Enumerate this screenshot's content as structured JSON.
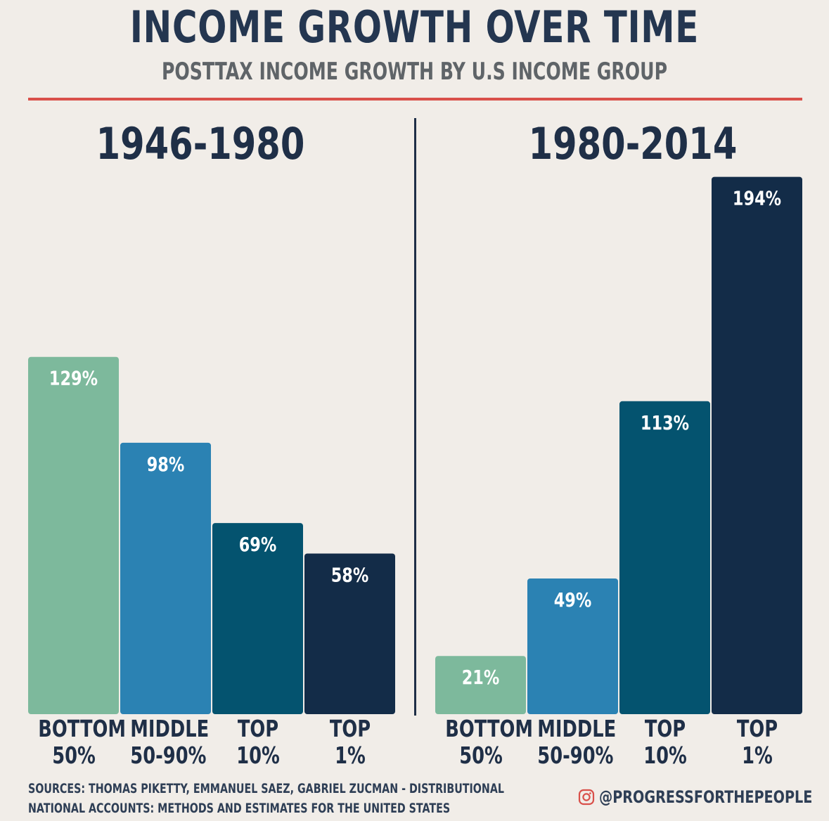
{
  "title": "INCOME GROWTH OVER TIME",
  "subtitle": "POSTTAX INCOME GROWTH BY U.S INCOME GROUP",
  "colors": {
    "accent_rule": "#d9504a",
    "bottom_50": "#7db99c",
    "middle_50_90": "#2b82b3",
    "top_10": "#04536f",
    "top_1": "#132c48",
    "text": "#1f2f47"
  },
  "chart_data": [
    {
      "type": "bar",
      "title": "1946-1980",
      "categories": [
        [
          "BOTTOM",
          "50%"
        ],
        [
          "MIDDLE",
          "50-90%"
        ],
        [
          "TOP",
          "10%"
        ],
        [
          "TOP",
          "1%"
        ]
      ],
      "values": [
        129,
        98,
        69,
        58
      ],
      "labels": [
        "129%",
        "98%",
        "69%",
        "58%"
      ],
      "ylim": [
        0,
        200
      ],
      "grid": false
    },
    {
      "type": "bar",
      "title": "1980-2014",
      "categories": [
        [
          "BOTTOM",
          "50%"
        ],
        [
          "MIDDLE",
          "50-90%"
        ],
        [
          "TOP",
          "10%"
        ],
        [
          "TOP",
          "1%"
        ]
      ],
      "values": [
        21,
        49,
        113,
        194
      ],
      "labels": [
        "21%",
        "49%",
        "113%",
        "194%"
      ],
      "ylim": [
        0,
        200
      ],
      "grid": false
    }
  ],
  "sources": {
    "line1": "SOURCES: THOMAS PIKETTY, EMMANUEL SAEZ, GABRIEL ZUCMAN - DISTRIBUTIONAL",
    "line2": "NATIONAL ACCOUNTS: METHODS AND ESTIMATES FOR THE UNITED STATES"
  },
  "social": {
    "icon": "instagram-icon",
    "handle": "@PROGRESSFORTHEPEOPLE"
  }
}
